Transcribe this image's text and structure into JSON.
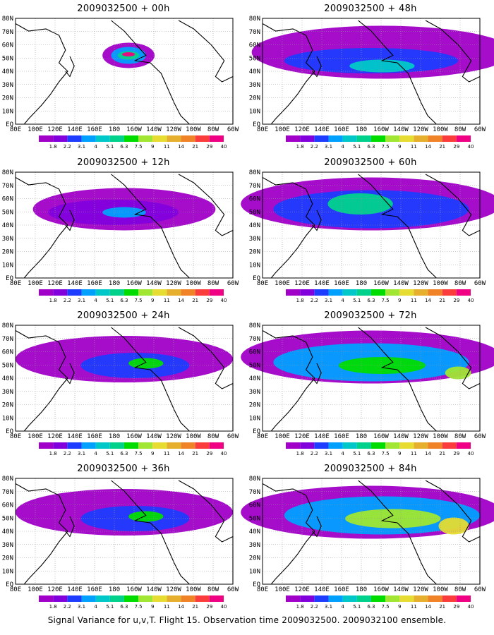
{
  "panels": [
    {
      "title": "2009032500 + 00h",
      "level": 0
    },
    {
      "title": "2009032500 + 48h",
      "level": 3
    },
    {
      "title": "2009032500 + 12h",
      "level": 1
    },
    {
      "title": "2009032500 + 60h",
      "level": 4
    },
    {
      "title": "2009032500 + 24h",
      "level": 2
    },
    {
      "title": "2009032500 + 72h",
      "level": 5
    },
    {
      "title": "2009032500 + 36h",
      "level": 2
    },
    {
      "title": "2009032500 + 84h",
      "level": 6
    }
  ],
  "lat_labels": [
    "80N",
    "70N",
    "60N",
    "50N",
    "40N",
    "30N",
    "20N",
    "10N",
    "EQ"
  ],
  "lon_labels": [
    "80E",
    "100E",
    "120E",
    "140E",
    "160E",
    "180",
    "160W",
    "140W",
    "120W",
    "100W",
    "80W",
    "60W"
  ],
  "colorbar": {
    "labels": [
      "1.8",
      "2.2",
      "3.1",
      "4",
      "5.1",
      "6.3",
      "7.5",
      "9",
      "11",
      "14",
      "21",
      "29",
      "40"
    ],
    "colors": [
      "#a000c8",
      "#8200dc",
      "#1e3cff",
      "#00a0ff",
      "#00c8c8",
      "#00d28c",
      "#00dc00",
      "#a0e632",
      "#e6dc32",
      "#e6af2d",
      "#f08228",
      "#fa3c3c",
      "#f00082"
    ]
  },
  "caption": "Signal Variance for u,v,T. Flight 15. Observation time 2009032500. 2009032100 ensemble."
}
